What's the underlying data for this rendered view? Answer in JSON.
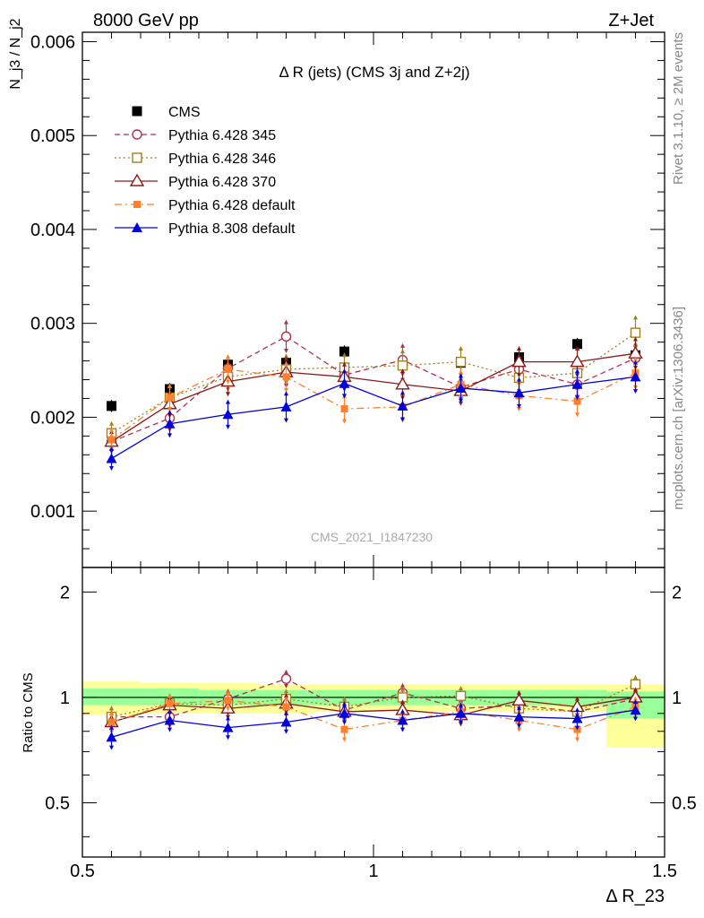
{
  "header": {
    "left": "8000 GeV pp",
    "right": "Z+Jet",
    "side_rivet": "Rivet 3.1.10, ≥ 2M events",
    "side_mcplots": "mcplots.cern.ch [arXiv:1306.3436]"
  },
  "chart_data": [
    {
      "type": "line",
      "title": "Δ R (jets) (CMS 3j and Z+2j)",
      "watermark": "CMS_2021_I1847230",
      "ylabel": "N_j3 / N_j2",
      "xlim": [
        0.5,
        1.5
      ],
      "ylim": [
        0.0004,
        0.0061
      ],
      "y_ticks": [
        "0.001",
        "0.002",
        "0.003",
        "0.004",
        "0.005",
        "0.006"
      ],
      "x": [
        0.55,
        0.65,
        0.75,
        0.85,
        0.95,
        1.05,
        1.15,
        1.25,
        1.35,
        1.45
      ],
      "legend_position": "top-left",
      "series": [
        {
          "name": "CMS",
          "color": "#000000",
          "marker": "filled-square",
          "line": "none",
          "values": [
            0.00212,
            0.0023,
            0.00256,
            0.00258,
            0.0027,
            0.00256,
            0.00258,
            0.00264,
            0.00278,
            0.00266
          ],
          "err": [
            4e-05,
            4e-05,
            4e-05,
            4e-05,
            4e-05,
            4e-05,
            4e-05,
            4e-05,
            4e-05,
            4e-05
          ]
        },
        {
          "name": "Pythia 6.428 345",
          "color": "#b03050",
          "marker": "open-circle",
          "line": "dashed",
          "values": [
            0.00174,
            0.00199,
            0.00252,
            0.00286,
            0.00245,
            0.00261,
            0.00232,
            0.00251,
            0.00235,
            0.00263
          ],
          "err": [
            0.0001,
            0.00012,
            0.00012,
            0.00015,
            0.00012,
            0.00015,
            0.00012,
            0.00014,
            0.00013,
            0.00015
          ]
        },
        {
          "name": "Pythia 6.428 346",
          "color": "#a08020",
          "marker": "open-square",
          "line": "dotted",
          "values": [
            0.00183,
            0.00221,
            0.00243,
            0.00251,
            0.00253,
            0.00255,
            0.00259,
            0.00242,
            0.00247,
            0.0029
          ],
          "err": [
            0.0001,
            0.00012,
            0.00013,
            0.00014,
            0.00013,
            0.00015,
            0.00014,
            0.00014,
            0.00014,
            0.00016
          ]
        },
        {
          "name": "Pythia 6.428 370",
          "color": "#8b1a1a",
          "marker": "open-triangle",
          "line": "solid",
          "values": [
            0.00174,
            0.00214,
            0.00238,
            0.00248,
            0.00243,
            0.00235,
            0.00228,
            0.00259,
            0.00259,
            0.00268
          ],
          "err": [
            0.0001,
            0.00012,
            0.00013,
            0.00014,
            0.00013,
            0.00014,
            0.00013,
            0.00014,
            0.00014,
            0.00015
          ]
        },
        {
          "name": "Pythia 6.428 default",
          "color": "#ff7f2a",
          "marker": "filled-square-small",
          "line": "dashdot",
          "values": [
            0.00176,
            0.00221,
            0.00251,
            0.00243,
            0.00209,
            0.00211,
            0.00235,
            0.00223,
            0.00217,
            0.00247
          ],
          "err": [
            0.0001,
            0.00012,
            0.00013,
            0.00014,
            0.00013,
            0.00014,
            0.00013,
            0.00014,
            0.00014,
            0.00015
          ]
        },
        {
          "name": "Pythia 8.308 default",
          "color": "#0000dd",
          "marker": "filled-triangle",
          "line": "solid",
          "values": [
            0.00156,
            0.00193,
            0.00203,
            0.00211,
            0.00236,
            0.00212,
            0.00231,
            0.00226,
            0.00235,
            0.00243
          ],
          "err": [
            0.0001,
            0.00012,
            0.00013,
            0.00014,
            0.00013,
            0.00014,
            0.00013,
            0.00014,
            0.00014,
            0.00015
          ]
        }
      ]
    },
    {
      "type": "line",
      "ylabel": "Ratio to CMS",
      "xlabel": "Δ R_23",
      "xlim": [
        0.5,
        1.5
      ],
      "ylim": [
        0.35,
        2.35
      ],
      "y_ticks": [
        "0.5",
        "1",
        "2"
      ],
      "x_ticks": [
        "0.5",
        "1",
        "1.5"
      ],
      "reference_line": 1,
      "bands": {
        "bin_edges": [
          0.5,
          0.6,
          0.7,
          0.8,
          0.9,
          1.0,
          1.1,
          1.2,
          1.3,
          1.4,
          1.5
        ],
        "yellow": [
          [
            0.89,
            1.11
          ],
          [
            0.9,
            1.1
          ],
          [
            0.9,
            1.1
          ],
          [
            0.9,
            1.09
          ],
          [
            0.91,
            1.09
          ],
          [
            0.91,
            1.09
          ],
          [
            0.91,
            1.09
          ],
          [
            0.91,
            1.09
          ],
          [
            0.91,
            1.09
          ],
          [
            0.72,
            1.09
          ]
        ],
        "green": [
          [
            0.95,
            1.06
          ],
          [
            0.95,
            1.06
          ],
          [
            0.95,
            1.05
          ],
          [
            0.95,
            1.05
          ],
          [
            0.95,
            1.05
          ],
          [
            0.95,
            1.05
          ],
          [
            0.95,
            1.05
          ],
          [
            0.95,
            1.05
          ],
          [
            0.95,
            1.05
          ],
          [
            0.87,
            1.04
          ]
        ]
      },
      "series": [
        {
          "name": "Pythia 6.428 345",
          "color": "#b03050",
          "marker": "open-circle",
          "line": "dashed",
          "values": [
            0.88,
            0.88,
            0.99,
            1.13,
            0.92,
            1.03,
            0.93,
            0.95,
            0.91,
            0.99
          ],
          "err": [
            0.05,
            0.05,
            0.05,
            0.05,
            0.05,
            0.05,
            0.05,
            0.05,
            0.05,
            0.05
          ]
        },
        {
          "name": "Pythia 6.428 346",
          "color": "#a08020",
          "marker": "open-square",
          "line": "dotted",
          "values": [
            0.88,
            0.96,
            0.95,
            0.99,
            0.94,
            1.0,
            1.01,
            0.93,
            0.91,
            1.09
          ],
          "err": [
            0.05,
            0.05,
            0.05,
            0.05,
            0.05,
            0.05,
            0.05,
            0.05,
            0.05,
            0.05
          ]
        },
        {
          "name": "Pythia 6.428 370",
          "color": "#8b1a1a",
          "marker": "open-triangle",
          "line": "solid",
          "values": [
            0.85,
            0.95,
            0.93,
            0.96,
            0.91,
            0.92,
            0.89,
            0.98,
            0.94,
            1.0
          ],
          "err": [
            0.05,
            0.05,
            0.05,
            0.05,
            0.05,
            0.05,
            0.05,
            0.05,
            0.05,
            0.05
          ]
        },
        {
          "name": "Pythia 6.428 default",
          "color": "#ff7f2a",
          "marker": "filled-square-small",
          "line": "dashdot",
          "values": [
            0.85,
            0.96,
            0.98,
            0.94,
            0.81,
            0.86,
            0.91,
            0.86,
            0.81,
            0.94
          ],
          "err": [
            0.05,
            0.05,
            0.05,
            0.05,
            0.05,
            0.05,
            0.05,
            0.05,
            0.05,
            0.05
          ]
        },
        {
          "name": "Pythia 8.308 default",
          "color": "#0000dd",
          "marker": "filled-triangle",
          "line": "solid",
          "values": [
            0.77,
            0.86,
            0.82,
            0.85,
            0.9,
            0.86,
            0.9,
            0.88,
            0.87,
            0.92
          ],
          "err": [
            0.05,
            0.05,
            0.05,
            0.05,
            0.05,
            0.05,
            0.05,
            0.05,
            0.05,
            0.05
          ]
        }
      ]
    }
  ]
}
